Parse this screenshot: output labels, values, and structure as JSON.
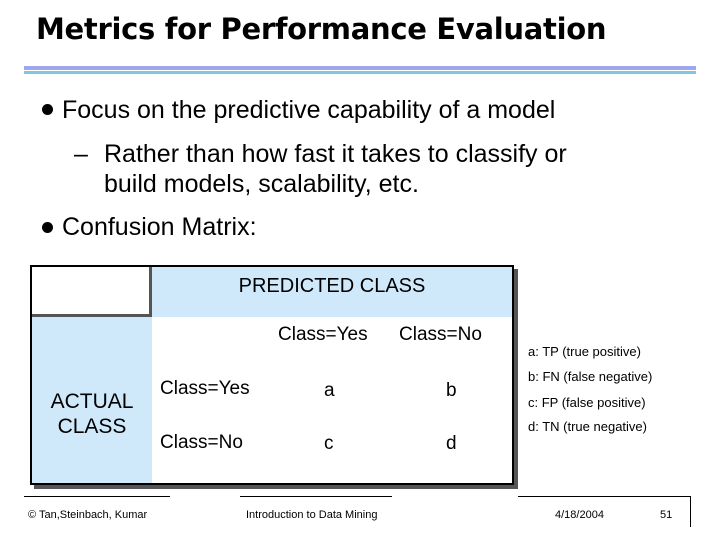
{
  "slide": {
    "title": "Metrics for Performance Evaluation",
    "bullets": [
      "Focus on the predictive capability of a model",
      "Confusion Matrix:"
    ],
    "subbullet_line1": "Rather than how fast it takes to classify or",
    "subbullet_line2": "build models, scalability, etc.",
    "dash": "–"
  },
  "matrix": {
    "predicted_header": "PREDICTED CLASS",
    "actual_header_line1": "ACTUAL",
    "actual_header_line2": "CLASS",
    "col_headers": [
      "Class=Yes",
      "Class=No"
    ],
    "row_headers": [
      "Class=Yes",
      "Class=No"
    ],
    "cells": [
      [
        "a",
        "b"
      ],
      [
        "c",
        "d"
      ]
    ]
  },
  "legend": [
    "a: TP (true positive)",
    "b: FN (false negative)",
    "c: FP (false positive)",
    "d: TN (true negative)"
  ],
  "footer": {
    "copyright": "© Tan,Steinbach, Kumar",
    "course": "Introduction to Data Mining",
    "date": "4/18/2004",
    "page": "51"
  },
  "colors": {
    "rule_top": "#9fa6ee",
    "rule_bottom": "#7fc6de",
    "header_band": "#cfe9fb"
  }
}
